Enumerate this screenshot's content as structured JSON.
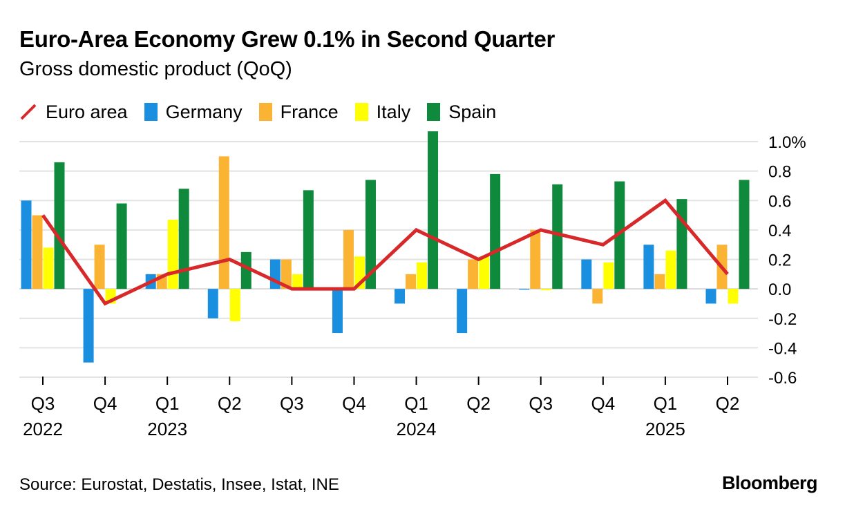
{
  "header": {
    "title": "Euro-Area Economy Grew 0.1% in Second Quarter",
    "subtitle": "Gross domestic product (QoQ)"
  },
  "footer": {
    "source": "Source: Eurostat, Destatis, Insee, Istat, INE",
    "brand": "Bloomberg"
  },
  "chart_data": {
    "type": "bar",
    "title": "Euro-Area Economy Grew 0.1% in Second Quarter",
    "subtitle": "Gross domestic product (QoQ)",
    "categories": [
      "Q3",
      "Q4",
      "Q1",
      "Q2",
      "Q3",
      "Q4",
      "Q1",
      "Q2",
      "Q3",
      "Q4",
      "Q1",
      "Q2"
    ],
    "year_labels": [
      "2022",
      "",
      "2023",
      "",
      "",
      "",
      "2024",
      "",
      "",
      "",
      "2025",
      ""
    ],
    "y_ticks": [
      1.0,
      0.8,
      0.6,
      0.4,
      0.2,
      0.0,
      -0.2,
      -0.4,
      -0.6
    ],
    "y_tick_labels": [
      "1.0%",
      "0.8",
      "0.6",
      "0.4",
      "0.2",
      "0.0",
      "-0.2",
      "-0.4",
      "-0.6"
    ],
    "ylim": [
      -0.6,
      1.0
    ],
    "grid": true,
    "y_axis_side": "right",
    "legend_position": "top-left",
    "series": [
      {
        "name": "Germany",
        "type": "bar",
        "color": "#1a8fe0",
        "values": [
          0.6,
          -0.5,
          0.1,
          -0.2,
          0.2,
          -0.3,
          -0.1,
          -0.3,
          0.0,
          0.2,
          0.3,
          -0.1
        ]
      },
      {
        "name": "France",
        "type": "bar",
        "color": "#fbb334",
        "values": [
          0.5,
          0.3,
          0.1,
          0.9,
          0.2,
          0.4,
          0.1,
          0.2,
          0.4,
          -0.1,
          0.1,
          0.3
        ]
      },
      {
        "name": "Italy",
        "type": "bar",
        "color": "#ffff00",
        "values": [
          0.28,
          -0.1,
          0.47,
          -0.22,
          0.1,
          0.22,
          0.18,
          0.22,
          -0.01,
          0.18,
          0.26,
          -0.1
        ]
      },
      {
        "name": "Spain",
        "type": "bar",
        "color": "#0f8a3c",
        "values": [
          0.86,
          0.58,
          0.68,
          0.25,
          0.67,
          0.74,
          1.07,
          0.78,
          0.71,
          0.73,
          0.61,
          0.74
        ]
      },
      {
        "name": "Euro area",
        "type": "line",
        "color": "#d7282a",
        "values": [
          0.5,
          -0.1,
          0.1,
          0.2,
          0.0,
          0.0,
          0.4,
          0.2,
          0.4,
          0.3,
          0.6,
          0.1
        ]
      }
    ]
  }
}
